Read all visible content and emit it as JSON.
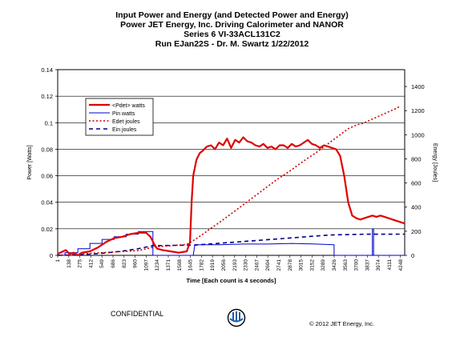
{
  "title_lines": [
    "Input Power and Energy (and Detected Power and Energy)",
    "Power JET Energy, Inc. Driving Calorimeter and NANOR",
    "Series 6  VI-33ACL131C2",
    "Run EJan22S - Dr. M. Swartz  1/22/2012"
  ],
  "footer": {
    "confidential": "CONFIDENTIAL",
    "copyright": "© 2012  JET Energy, Inc."
  },
  "chart_data": {
    "type": "line",
    "xlabel": "Time [Each count is 4 seconds]",
    "ylabel": "Power [Watts]",
    "y2label": "Energy [Joules]",
    "xlim": [
      1,
      4300
    ],
    "ylim": [
      0,
      0.14
    ],
    "y2lim": [
      0,
      1540
    ],
    "xticks": [
      "1",
      "138",
      "275",
      "412",
      "549",
      "686",
      "823",
      "960",
      "1097",
      "1234",
      "1371",
      "1508",
      "1645",
      "1782",
      "1919",
      "2056",
      "2193",
      "2330",
      "2467",
      "2604",
      "2741",
      "2878",
      "3015",
      "3152",
      "3289",
      "3426",
      "3563",
      "3700",
      "3837",
      "3974",
      "4111",
      "4248"
    ],
    "yticks": [
      "0",
      "0.02",
      "0.04",
      "0.06",
      "0.08",
      "0.1",
      "0.12",
      "0.14"
    ],
    "y2ticks": [
      "0",
      "200",
      "400",
      "600",
      "800",
      "1000",
      "1200",
      "1400"
    ],
    "grid": true,
    "legend_position": "top-left",
    "colors": {
      "pdet": "#e00000",
      "pin": "#0000cc",
      "edet": "#cc0000",
      "ein": "#000088"
    },
    "series": [
      {
        "name": "<Pdet> watts",
        "axis": "left",
        "style": "thick-solid",
        "color": "#e00000",
        "x": [
          1,
          100,
          150,
          200,
          250,
          300,
          400,
          500,
          600,
          700,
          800,
          900,
          1000,
          1097,
          1150,
          1200,
          1234,
          1300,
          1400,
          1500,
          1600,
          1640,
          1660,
          1680,
          1720,
          1760,
          1800,
          1850,
          1900,
          1950,
          2000,
          2050,
          2100,
          2150,
          2200,
          2250,
          2300,
          2350,
          2400,
          2450,
          2500,
          2550,
          2600,
          2650,
          2700,
          2750,
          2800,
          2850,
          2900,
          2950,
          3000,
          3050,
          3100,
          3150,
          3200,
          3250,
          3300,
          3350,
          3400,
          3450,
          3500,
          3550,
          3600,
          3650,
          3700,
          3750,
          3800,
          3850,
          3900,
          3950,
          4000,
          4050,
          4100,
          4150,
          4200,
          4250,
          4300
        ],
        "y": [
          0.001,
          0.004,
          0.001,
          0.002,
          0.0,
          0.002,
          0.003,
          0.006,
          0.01,
          0.013,
          0.014,
          0.016,
          0.017,
          0.017,
          0.014,
          0.008,
          0.005,
          0.004,
          0.003,
          0.002,
          0.003,
          0.01,
          0.04,
          0.06,
          0.072,
          0.077,
          0.079,
          0.082,
          0.083,
          0.08,
          0.085,
          0.083,
          0.088,
          0.081,
          0.087,
          0.085,
          0.089,
          0.086,
          0.085,
          0.083,
          0.082,
          0.084,
          0.081,
          0.082,
          0.08,
          0.083,
          0.083,
          0.081,
          0.084,
          0.082,
          0.083,
          0.085,
          0.087,
          0.084,
          0.083,
          0.081,
          0.083,
          0.082,
          0.081,
          0.08,
          0.075,
          0.06,
          0.04,
          0.03,
          0.028,
          0.027,
          0.028,
          0.029,
          0.03,
          0.029,
          0.03,
          0.029,
          0.028,
          0.027,
          0.026,
          0.025,
          0.024
        ]
      },
      {
        "name": "Pin watts",
        "axis": "left",
        "style": "thin-solid",
        "color": "#0000cc",
        "x": [
          1,
          90,
          90,
          250,
          250,
          400,
          400,
          550,
          550,
          700,
          700,
          850,
          850,
          1000,
          1000,
          1180,
          1180,
          1680,
          1700,
          2000,
          2300,
          2600,
          2900,
          3200,
          3425,
          3425,
          3900,
          3900,
          3915,
          3915,
          4300
        ],
        "y": [
          0.0,
          0.0,
          0.002,
          0.002,
          0.005,
          0.005,
          0.009,
          0.009,
          0.012,
          0.012,
          0.014,
          0.014,
          0.016,
          0.016,
          0.018,
          0.018,
          0.0,
          0.0,
          0.008,
          0.008,
          0.0085,
          0.0085,
          0.009,
          0.0085,
          0.008,
          0.0,
          0.0,
          0.02,
          0.02,
          0.0,
          0.0
        ]
      },
      {
        "name": "Edet joules",
        "axis": "right",
        "style": "dotted",
        "color": "#cc0000",
        "x": [
          1,
          1000,
          1200,
          1400,
          1600,
          1700,
          1800,
          1900,
          2000,
          2100,
          2200,
          2300,
          2400,
          2500,
          2600,
          2700,
          2800,
          2900,
          3000,
          3100,
          3200,
          3300,
          3400,
          3500,
          3600,
          3700,
          3800,
          3900,
          4000,
          4100,
          4200,
          4250
        ],
        "y": [
          0,
          40,
          70,
          80,
          90,
          130,
          175,
          225,
          270,
          320,
          370,
          420,
          470,
          520,
          570,
          620,
          665,
          710,
          760,
          805,
          850,
          900,
          950,
          1000,
          1050,
          1080,
          1100,
          1130,
          1160,
          1190,
          1220,
          1240
        ]
      },
      {
        "name": "Ein joules",
        "axis": "right",
        "style": "dashed",
        "color": "#000088",
        "x": [
          1,
          200,
          400,
          600,
          800,
          1000,
          1180,
          1400,
          1700,
          1900,
          2100,
          2300,
          2500,
          2700,
          2900,
          3100,
          3300,
          3420,
          3600,
          3800,
          4000,
          4200,
          4300
        ],
        "y": [
          0,
          3,
          10,
          20,
          35,
          55,
          80,
          82,
          85,
          95,
          105,
          115,
          125,
          135,
          145,
          155,
          165,
          170,
          172,
          175,
          175,
          176,
          176
        ]
      }
    ]
  }
}
